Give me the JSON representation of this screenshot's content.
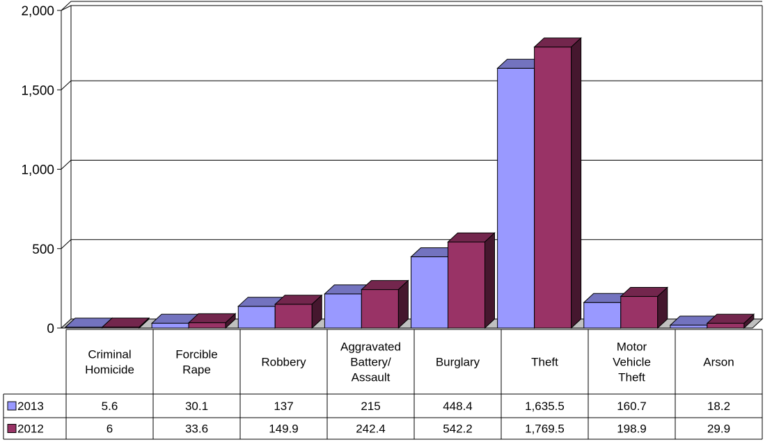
{
  "chart_data": {
    "type": "bar",
    "categories": [
      [
        "Criminal",
        "Homicide"
      ],
      [
        "Forcible",
        "Rape"
      ],
      [
        "Robbery"
      ],
      [
        "Aggravated",
        "Battery/",
        "Assault"
      ],
      [
        "Burglary"
      ],
      [
        "Theft"
      ],
      [
        "Motor",
        "Vehicle",
        "Theft"
      ],
      [
        "Arson"
      ]
    ],
    "series": [
      {
        "name": "2013",
        "color": "#9999ff",
        "values": [
          5.6,
          30.1,
          137,
          215,
          448.4,
          1635.5,
          160.7,
          18.2
        ],
        "labels": [
          "5.6",
          "30.1",
          "137",
          "215",
          "448.4",
          "1,635.5",
          "160.7",
          "18.2"
        ]
      },
      {
        "name": "2012",
        "color": "#993366",
        "values": [
          6,
          33.6,
          149.9,
          242.4,
          542.2,
          1769.5,
          198.9,
          29.9
        ],
        "labels": [
          "6",
          "33.6",
          "149.9",
          "242.4",
          "542.2",
          "1,769.5",
          "198.9",
          "29.9"
        ]
      }
    ],
    "y_ticks": [
      "0",
      "500",
      "1,000",
      "1,500",
      "2,000"
    ],
    "ylim": [
      0,
      2000
    ],
    "grid": true,
    "legend": "data-table"
  }
}
